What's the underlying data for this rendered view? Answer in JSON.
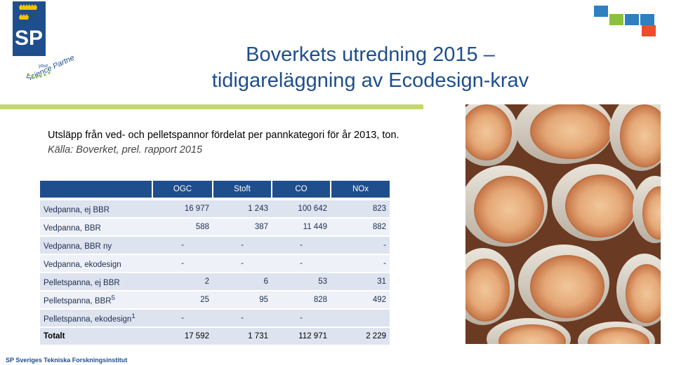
{
  "logo": {
    "letters": "SP",
    "tagline_small": "your",
    "tagline": "Science Partner",
    "brand_color": "#1f4e8c"
  },
  "title": {
    "line1": "Boverkets utredning 2015 –",
    "line2": "tidigareläggning av Ecodesign-krav"
  },
  "caption": {
    "main": "Utsläpp från ved- och pelletspannor fördelat per pannkategori för år 2013, ton.",
    "source": "Källa: Boverket, prel. rapport 2015"
  },
  "table": {
    "headers": [
      "",
      "OGC",
      "Stoft",
      "CO",
      "NOx"
    ],
    "rows": [
      {
        "label": "Vedpanna, ej BBR",
        "sup": "",
        "values": [
          "16 977",
          "1 243",
          "100 642",
          "823"
        ]
      },
      {
        "label": "Vedpanna, BBR",
        "sup": "",
        "values": [
          "588",
          "387",
          "11 449",
          "882"
        ]
      },
      {
        "label": "Vedpanna, BBR ny",
        "sup": "",
        "values": [
          "-",
          "-",
          "-",
          "-"
        ]
      },
      {
        "label": "Vedpanna, ekodesign",
        "sup": "",
        "values": [
          "-",
          "-",
          "-",
          "-"
        ]
      },
      {
        "label": "Pelletspanna, ej BBR",
        "sup": "",
        "values": [
          "2",
          "6",
          "53",
          "31"
        ]
      },
      {
        "label": "Pelletspanna, BBR",
        "sup": "5",
        "values": [
          "25",
          "95",
          "828",
          "492"
        ]
      },
      {
        "label": "Pelletspanna, ekodesign",
        "sup": "1",
        "values": [
          "-",
          "-",
          "-",
          ""
        ]
      }
    ],
    "total": {
      "label": "Totalt",
      "values": [
        "17 592",
        "1 731",
        "112 971",
        "2 229"
      ]
    }
  },
  "footer": {
    "text": "SP Sveriges Tekniska Forskningsinstitut"
  },
  "colors": {
    "accent_blue": "#1f4e8c",
    "green_rule": "#c5d86d",
    "deco_blue": "#2f7fc1",
    "deco_green": "#8bbf3f",
    "deco_orange": "#e8502a"
  }
}
